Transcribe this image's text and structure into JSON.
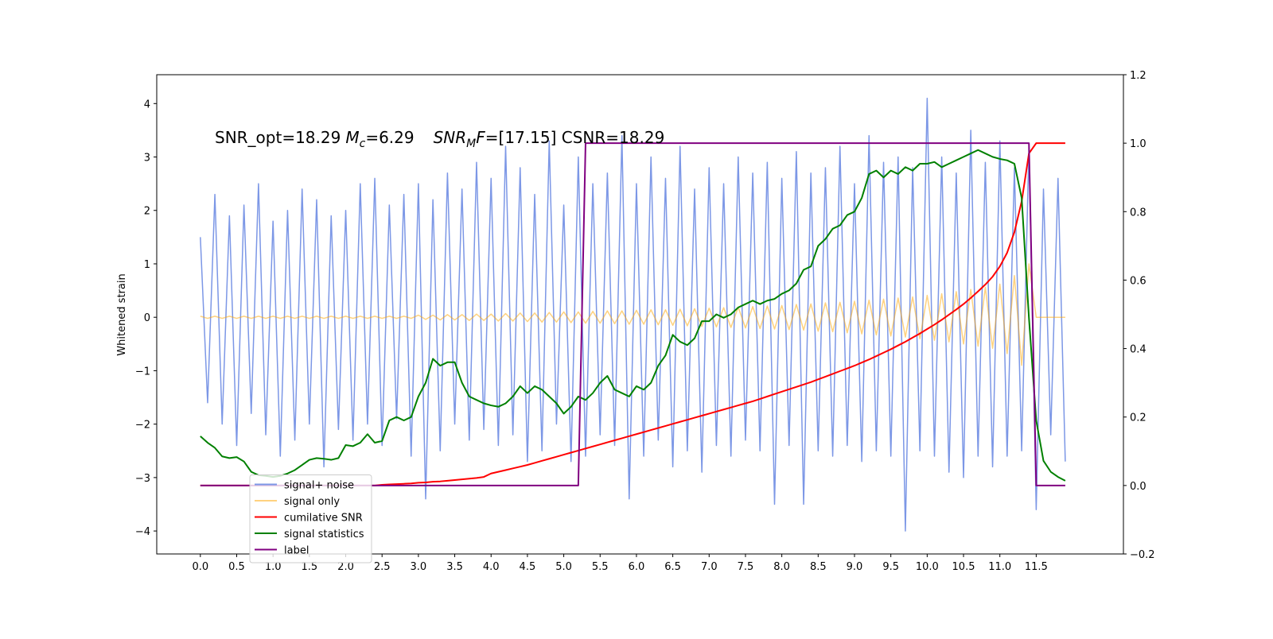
{
  "chart_data": {
    "type": "line",
    "annotation": [
      "SNR_opt=18.29",
      "M",
      "c",
      "=6.29",
      "SNR",
      "M",
      "F",
      "=[17.15] CSNR=18.29"
    ],
    "ylabel": "Whitened strain",
    "xlim": [
      -0.6,
      12.7
    ],
    "ylim": [
      -4.43,
      4.54
    ],
    "y2lim": [
      -0.2,
      1.2
    ],
    "xticks": [
      {
        "value": 0,
        "label": "0.0"
      },
      0.5,
      {
        "value": 1,
        "label": "1.0"
      },
      1.5,
      {
        "value": 2,
        "label": "2.0"
      },
      2.5,
      {
        "value": 3,
        "label": "3.0"
      },
      3.5,
      {
        "value": 4,
        "label": "4.0"
      },
      4.5,
      {
        "value": 5,
        "label": "5.0"
      },
      5.5,
      {
        "value": 6,
        "label": "6.0"
      },
      6.5,
      {
        "value": 7,
        "label": "7.0"
      },
      7.5,
      {
        "value": 8,
        "label": "8.0"
      },
      8.5,
      {
        "value": 9,
        "label": "9.0"
      },
      9.5,
      {
        "value": 10,
        "label": "10.0"
      },
      10.5,
      {
        "value": 11,
        "label": "11.0"
      },
      11.5
    ],
    "yticks": [
      {
        "value": -4,
        "label": "−4"
      },
      {
        "value": -3,
        "label": "−3"
      },
      {
        "value": -2,
        "label": "−2"
      },
      {
        "value": -1,
        "label": "−1"
      },
      0,
      1,
      2,
      3,
      4
    ],
    "y2ticks": [
      {
        "value": -0.2,
        "label": "−0.2"
      },
      {
        "value": 0,
        "label": "0.0"
      },
      0.2,
      0.4,
      0.6,
      0.8,
      {
        "value": 1,
        "label": "1.0"
      },
      1.2
    ],
    "legend_loc": "lower left",
    "x": [
      0,
      0.1,
      0.2,
      0.3,
      0.4,
      0.5,
      0.6,
      0.7,
      0.8,
      0.9,
      1,
      1.1,
      1.2,
      1.3,
      1.4,
      1.5,
      1.6,
      1.7,
      1.8,
      1.9,
      2,
      2.1,
      2.2,
      2.3,
      2.4,
      2.5,
      2.6,
      2.7,
      2.8,
      2.9,
      3,
      3.1,
      3.2,
      3.3,
      3.4,
      3.5,
      3.6,
      3.7,
      3.8,
      3.9,
      4,
      4.1,
      4.2,
      4.3,
      4.4,
      4.5,
      4.6,
      4.7,
      4.8,
      4.9,
      5,
      5.1,
      5.2,
      5.3,
      5.4,
      5.5,
      5.6,
      5.7,
      5.8,
      5.9,
      6,
      6.1,
      6.2,
      6.3,
      6.4,
      6.5,
      6.6,
      6.7,
      6.8,
      6.9,
      7,
      7.1,
      7.2,
      7.3,
      7.4,
      7.5,
      7.6,
      7.7,
      7.8,
      7.9,
      8,
      8.1,
      8.2,
      8.3,
      8.4,
      8.5,
      8.6,
      8.7,
      8.8,
      8.9,
      9,
      9.1,
      9.2,
      9.3,
      9.4,
      9.5,
      9.6,
      9.7,
      9.8,
      9.9,
      10,
      10.1,
      10.2,
      10.3,
      10.4,
      10.5,
      10.6,
      10.7,
      10.8,
      10.9,
      11,
      11.1,
      11.2,
      11.3,
      11.4,
      11.5,
      11.6,
      11.7,
      11.8,
      11.9
    ],
    "series": [
      {
        "name": "signal+ noise",
        "color": "#7591e5",
        "axis": "y",
        "values": [
          1.5,
          -1.6,
          2.3,
          -2.0,
          1.9,
          -2.4,
          2.1,
          -1.8,
          2.5,
          -2.2,
          1.8,
          -2.6,
          2.0,
          -2.3,
          2.4,
          -2.0,
          2.2,
          -2.8,
          1.9,
          -2.1,
          2.0,
          -2.3,
          2.5,
          -2.0,
          2.6,
          -2.4,
          2.1,
          -1.9,
          2.3,
          -2.6,
          2.5,
          -3.4,
          2.2,
          -2.5,
          2.7,
          -2.0,
          2.4,
          -2.3,
          2.9,
          -2.1,
          2.6,
          -2.4,
          3.2,
          -2.2,
          2.8,
          -2.7,
          2.3,
          -2.5,
          3.3,
          -2.0,
          2.1,
          -2.7,
          3.0,
          -2.6,
          2.5,
          -2.2,
          2.7,
          -2.4,
          3.4,
          -3.4,
          2.5,
          -2.6,
          3.0,
          -2.3,
          2.6,
          -2.8,
          3.2,
          -2.5,
          2.4,
          -2.9,
          2.8,
          -2.4,
          2.5,
          -2.6,
          3.0,
          -2.3,
          2.7,
          -2.5,
          2.9,
          -3.5,
          2.6,
          -2.4,
          3.1,
          -3.5,
          2.7,
          -2.5,
          2.8,
          -2.6,
          3.2,
          -2.4,
          2.5,
          -2.7,
          3.4,
          -2.5,
          2.9,
          -2.6,
          3.0,
          -4.0,
          2.8,
          -2.5,
          4.1,
          -2.6,
          3.0,
          -2.9,
          2.7,
          -3.0,
          3.5,
          -2.6,
          2.9,
          -2.8,
          3.3,
          -2.6,
          2.8,
          -2.5,
          3.2,
          -3.6,
          2.4,
          -2.2,
          2.6,
          -2.7
        ]
      },
      {
        "name": "signal only",
        "color": "#ffa500",
        "axis": "y",
        "values": [
          0.02,
          -0.02,
          0.02,
          -0.02,
          0.02,
          -0.02,
          0.02,
          -0.02,
          0.02,
          -0.02,
          0.02,
          -0.02,
          0.02,
          -0.02,
          0.02,
          -0.02,
          0.02,
          -0.02,
          0.02,
          -0.02,
          0.02,
          -0.02,
          0.02,
          -0.02,
          0.02,
          -0.02,
          0.02,
          -0.02,
          0.02,
          -0.02,
          0.04,
          -0.04,
          0.04,
          -0.05,
          0.05,
          -0.05,
          0.05,
          -0.06,
          0.06,
          -0.06,
          0.06,
          -0.07,
          0.07,
          -0.07,
          0.08,
          -0.08,
          0.08,
          -0.09,
          0.09,
          -0.09,
          0.1,
          -0.1,
          0.1,
          -0.11,
          0.11,
          -0.11,
          0.12,
          -0.12,
          0.12,
          -0.13,
          0.13,
          -0.13,
          0.14,
          -0.14,
          0.14,
          -0.15,
          0.15,
          -0.16,
          0.16,
          -0.17,
          0.17,
          -0.18,
          0.18,
          -0.19,
          0.19,
          -0.2,
          0.2,
          -0.21,
          0.21,
          -0.22,
          0.22,
          -0.23,
          0.24,
          -0.24,
          0.25,
          -0.26,
          0.27,
          -0.27,
          0.28,
          -0.29,
          0.3,
          -0.31,
          0.32,
          -0.33,
          0.34,
          -0.35,
          0.36,
          -0.37,
          0.38,
          -0.4,
          0.41,
          -0.43,
          0.44,
          -0.46,
          0.48,
          -0.5,
          0.52,
          -0.54,
          0.56,
          -0.58,
          0.62,
          -0.68,
          0.78,
          -0.9,
          1.0,
          0,
          0,
          0,
          0,
          0
        ]
      },
      {
        "name": "cumilative SNR",
        "color": "#ff0000",
        "axis": "y2",
        "values": [
          0,
          0,
          0,
          0,
          0,
          0,
          0,
          0,
          0,
          0,
          0,
          0,
          0,
          0,
          0,
          0,
          0,
          0,
          0,
          0,
          0,
          0,
          0,
          0,
          0,
          0.002,
          0.003,
          0.004,
          0.005,
          0.006,
          0.008,
          0.009,
          0.011,
          0.012,
          0.014,
          0.016,
          0.018,
          0.02,
          0.022,
          0.025,
          0.035,
          0.04,
          0.045,
          0.05,
          0.055,
          0.06,
          0.066,
          0.072,
          0.078,
          0.084,
          0.09,
          0.096,
          0.102,
          0.108,
          0.114,
          0.12,
          0.126,
          0.132,
          0.138,
          0.144,
          0.15,
          0.156,
          0.162,
          0.168,
          0.174,
          0.18,
          0.186,
          0.192,
          0.198,
          0.204,
          0.21,
          0.216,
          0.222,
          0.228,
          0.234,
          0.24,
          0.246,
          0.253,
          0.26,
          0.267,
          0.274,
          0.281,
          0.288,
          0.295,
          0.302,
          0.31,
          0.318,
          0.326,
          0.334,
          0.342,
          0.35,
          0.359,
          0.368,
          0.378,
          0.388,
          0.398,
          0.409,
          0.42,
          0.432,
          0.444,
          0.457,
          0.47,
          0.484,
          0.499,
          0.514,
          0.53,
          0.548,
          0.567,
          0.587,
          0.61,
          0.64,
          0.68,
          0.74,
          0.83,
          0.97,
          1.0,
          1.0,
          1.0,
          1.0,
          1.0
        ]
      },
      {
        "name": "signal statistics",
        "color": "#008000",
        "axis": "y2",
        "values": [
          0.144,
          0.125,
          0.11,
          0.085,
          0.08,
          0.083,
          0.07,
          0.04,
          0.03,
          0.028,
          0.025,
          0.028,
          0.035,
          0.045,
          0.06,
          0.075,
          0.08,
          0.078,
          0.075,
          0.08,
          0.118,
          0.115,
          0.125,
          0.15,
          0.125,
          0.13,
          0.19,
          0.2,
          0.19,
          0.2,
          0.26,
          0.3,
          0.37,
          0.35,
          0.36,
          0.36,
          0.3,
          0.26,
          0.25,
          0.24,
          0.234,
          0.23,
          0.24,
          0.26,
          0.29,
          0.27,
          0.29,
          0.28,
          0.26,
          0.24,
          0.21,
          0.23,
          0.26,
          0.25,
          0.27,
          0.3,
          0.32,
          0.28,
          0.27,
          0.26,
          0.29,
          0.28,
          0.3,
          0.35,
          0.38,
          0.44,
          0.42,
          0.41,
          0.43,
          0.48,
          0.48,
          0.5,
          0.49,
          0.5,
          0.52,
          0.53,
          0.54,
          0.53,
          0.54,
          0.545,
          0.56,
          0.57,
          0.59,
          0.63,
          0.64,
          0.7,
          0.72,
          0.75,
          0.76,
          0.79,
          0.8,
          0.84,
          0.91,
          0.92,
          0.9,
          0.92,
          0.91,
          0.93,
          0.92,
          0.94,
          0.94,
          0.945,
          0.93,
          0.94,
          0.95,
          0.96,
          0.97,
          0.98,
          0.97,
          0.96,
          0.954,
          0.95,
          0.94,
          0.84,
          0.49,
          0.19,
          0.072,
          0.04,
          0.025,
          0.014
        ]
      },
      {
        "name": "label",
        "color": "#800080",
        "axis": "y2",
        "values": [
          0,
          0,
          0,
          0,
          0,
          0,
          0,
          0,
          0,
          0,
          0,
          0,
          0,
          0,
          0,
          0,
          0,
          0,
          0,
          0,
          0,
          0,
          0,
          0,
          0,
          0,
          0,
          0,
          0,
          0,
          0,
          0,
          0,
          0,
          0,
          0,
          0,
          0,
          0,
          0,
          0,
          0,
          0,
          0,
          0,
          0,
          0,
          0,
          0,
          0,
          0,
          0,
          0,
          1,
          1,
          1,
          1,
          1,
          1,
          1,
          1,
          1,
          1,
          1,
          1,
          1,
          1,
          1,
          1,
          1,
          1,
          1,
          1,
          1,
          1,
          1,
          1,
          1,
          1,
          1,
          1,
          1,
          1,
          1,
          1,
          1,
          1,
          1,
          1,
          1,
          1,
          1,
          1,
          1,
          1,
          1,
          1,
          1,
          1,
          1,
          1,
          1,
          1,
          1,
          1,
          1,
          1,
          1,
          1,
          1,
          1,
          1,
          1,
          1,
          1,
          0,
          0,
          0,
          0,
          0
        ]
      }
    ]
  }
}
